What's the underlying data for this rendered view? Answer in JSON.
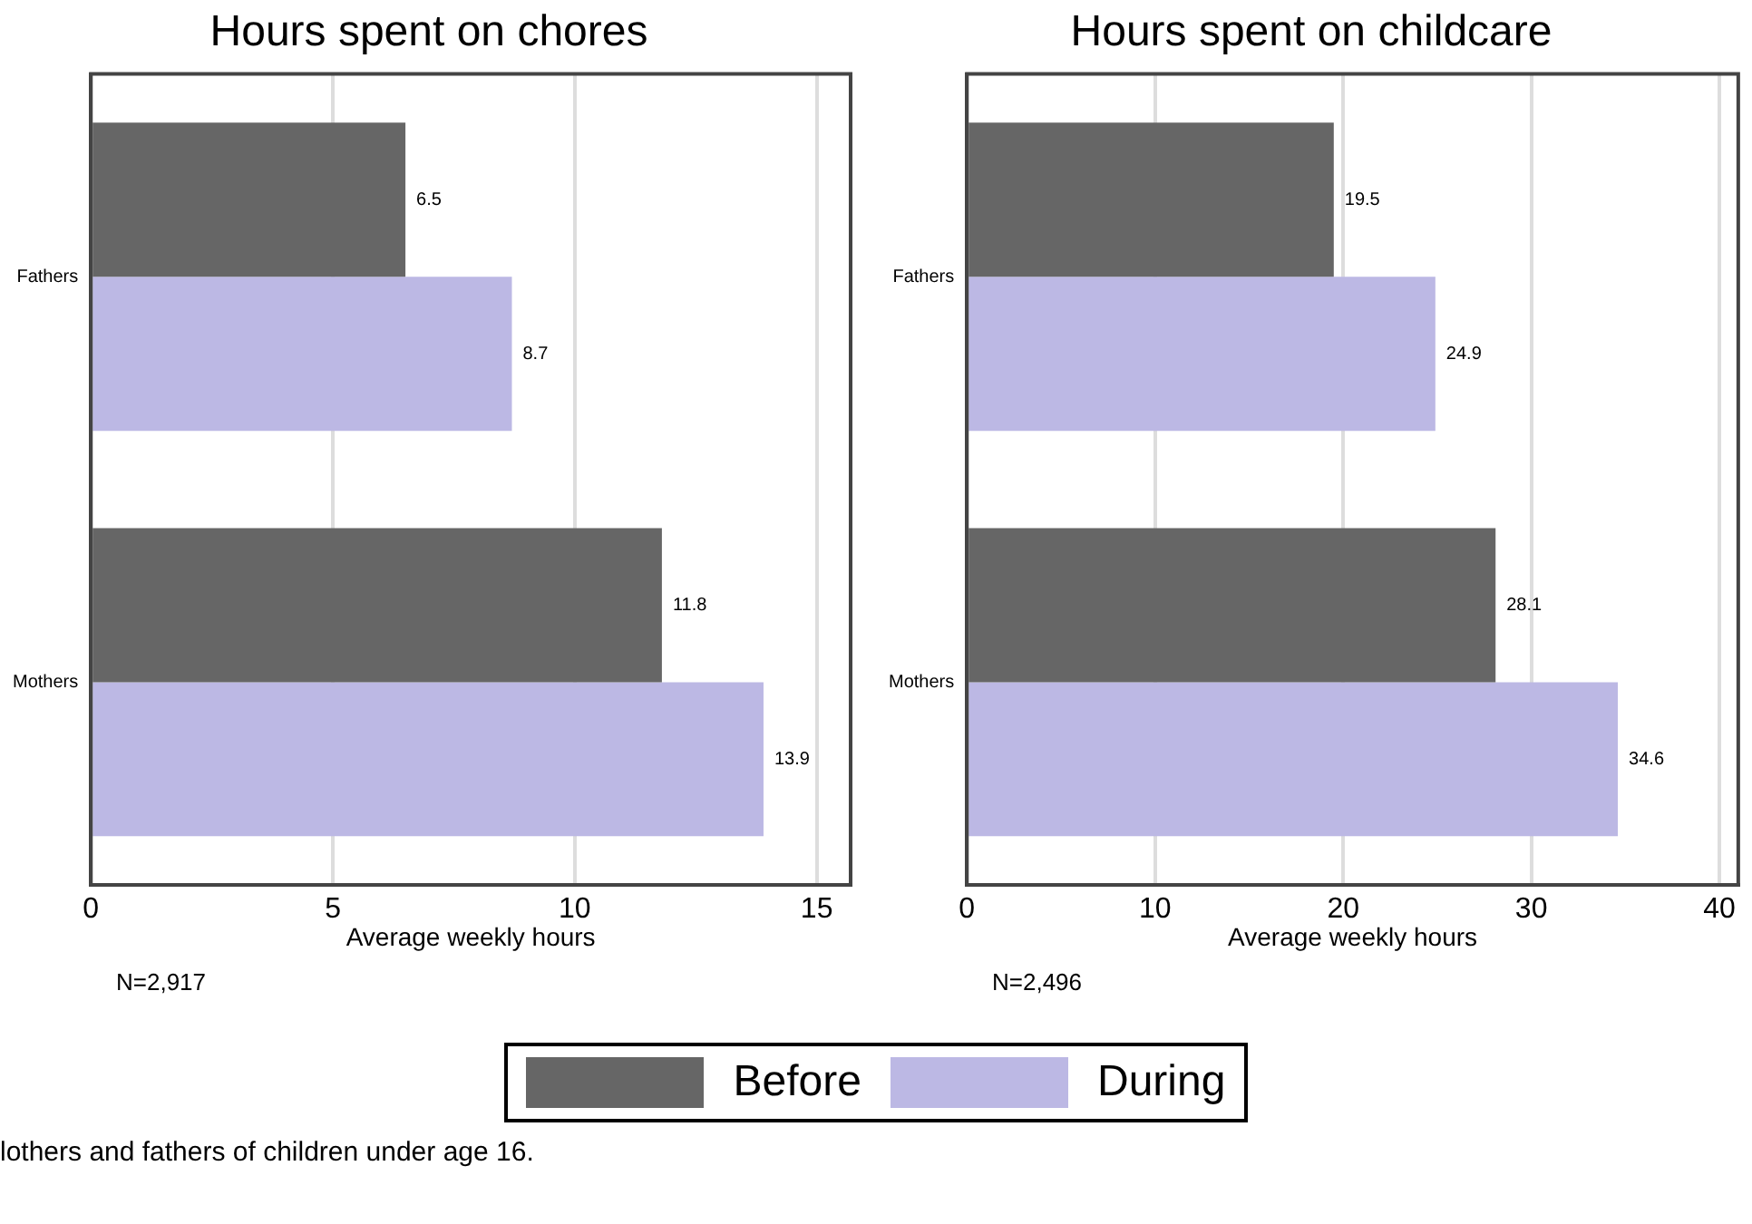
{
  "chart_data": [
    {
      "type": "bar",
      "orientation": "horizontal",
      "title": "Hours spent on chores",
      "xlabel": "Average weekly hours",
      "categories": [
        "Fathers",
        "Mothers"
      ],
      "series": [
        {
          "name": "Before",
          "color": "#666666",
          "values": [
            6.5,
            11.8
          ]
        },
        {
          "name": "During",
          "color": "#bcb8e4",
          "values": [
            8.7,
            13.9
          ]
        }
      ],
      "xlim": [
        0,
        15.7
      ],
      "xticks": [
        0,
        5,
        10,
        15
      ],
      "grid": "x",
      "data_labels": true,
      "legend": "bottom",
      "annotations": [
        "N=2,917",
        "lothers and fathers of children under age 16."
      ]
    },
    {
      "type": "bar",
      "orientation": "horizontal",
      "title": "Hours spent on childcare",
      "xlabel": "Average weekly hours",
      "categories": [
        "Fathers",
        "Mothers"
      ],
      "series": [
        {
          "color": "#666666",
          "values": [
            19.5,
            28.1
          ]
        },
        {
          "color": "#bcb8e4",
          "values": [
            24.9,
            34.6
          ]
        }
      ],
      "xlim": [
        0,
        41
      ],
      "xticks": [
        0,
        10,
        20,
        30,
        40
      ],
      "grid": "x",
      "data_labels": true,
      "annotations": [
        "N=2,496"
      ]
    }
  ]
}
